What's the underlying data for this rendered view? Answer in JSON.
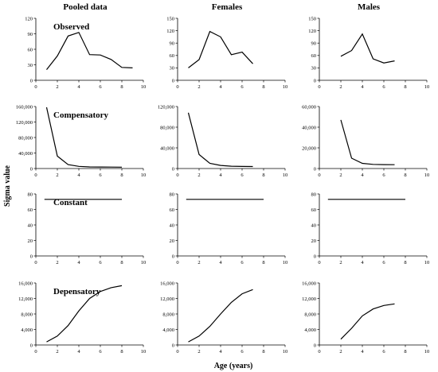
{
  "figure": {
    "column_titles": [
      "Pooled data",
      "Females",
      "Males"
    ],
    "y_axis_title": "Sigma value",
    "x_axis_title": "Age (years)"
  },
  "chart_data": [
    {
      "type": "line",
      "row": "Observed",
      "column": "Pooled data",
      "title": "Observed",
      "x": [
        1,
        2,
        3,
        4,
        5,
        6,
        7,
        8,
        9
      ],
      "values": [
        24,
        55,
        100,
        108,
        58,
        57,
        47,
        29,
        28
      ],
      "xlim": [
        0,
        10
      ],
      "ylim": [
        0,
        140
      ],
      "xticks": [
        "0",
        "2",
        "4",
        "6",
        "8",
        "10"
      ],
      "yticks": [
        "0",
        "30",
        "60",
        "90",
        "120"
      ]
    },
    {
      "type": "line",
      "row": "Observed",
      "column": "Females",
      "x": [
        1,
        2,
        3,
        4,
        5,
        6,
        7
      ],
      "values": [
        30,
        50,
        118,
        105,
        62,
        68,
        40
      ],
      "xlim": [
        0,
        10
      ],
      "ylim": [
        0,
        150
      ],
      "xticks": [
        "0",
        "2",
        "4",
        "6",
        "8",
        "10"
      ],
      "yticks": [
        "0",
        "30",
        "60",
        "90",
        "120",
        "150"
      ]
    },
    {
      "type": "line",
      "row": "Observed",
      "column": "Males",
      "x": [
        2,
        3,
        4,
        5,
        6,
        7
      ],
      "values": [
        58,
        72,
        112,
        52,
        42,
        47
      ],
      "xlim": [
        0,
        10
      ],
      "ylim": [
        0,
        150
      ],
      "xticks": [
        "0",
        "2",
        "4",
        "6",
        "8",
        "10"
      ],
      "yticks": [
        "0",
        "30",
        "60",
        "90",
        "120",
        "150"
      ]
    },
    {
      "type": "line",
      "row": "Compensatory",
      "column": "Pooled data",
      "title": "Compensatory",
      "x": [
        1,
        2,
        3,
        4,
        5,
        6,
        7,
        8
      ],
      "values": [
        158000,
        32000,
        10000,
        5500,
        4200,
        3800,
        3600,
        3500
      ],
      "xlim": [
        0,
        10
      ],
      "ylim": [
        0,
        160000
      ],
      "xticks": [
        "0",
        "2",
        "4",
        "6",
        "8",
        "10"
      ],
      "yticks": [
        "0",
        "40,000",
        "80,000",
        "120,000",
        "160,000"
      ]
    },
    {
      "type": "line",
      "row": "Compensatory",
      "column": "Females",
      "x": [
        1,
        2,
        3,
        4,
        5,
        6,
        7
      ],
      "values": [
        108000,
        27000,
        10000,
        6000,
        4500,
        4000,
        3800
      ],
      "xlim": [
        0,
        10
      ],
      "ylim": [
        0,
        120000
      ],
      "xticks": [
        "0",
        "2",
        "4",
        "6",
        "8",
        "10"
      ],
      "yticks": [
        "0",
        "40,000",
        "80,000",
        "120,000"
      ]
    },
    {
      "type": "line",
      "row": "Compensatory",
      "column": "Males",
      "x": [
        2,
        3,
        4,
        5,
        6,
        7
      ],
      "values": [
        47000,
        10000,
        5000,
        4000,
        3800,
        3700
      ],
      "xlim": [
        0,
        10
      ],
      "ylim": [
        0,
        60000
      ],
      "xticks": [
        "0",
        "2",
        "4",
        "6",
        "8",
        "10"
      ],
      "yticks": [
        "0",
        "20,000",
        "40,000",
        "60,000"
      ]
    },
    {
      "type": "line",
      "row": "Constant",
      "column": "Pooled data",
      "title": "Constant",
      "x": [
        0.8,
        8
      ],
      "values": [
        73,
        73
      ],
      "xlim": [
        0,
        10
      ],
      "ylim": [
        0,
        80
      ],
      "xticks": [
        "0",
        "2",
        "4",
        "6",
        "8",
        "10"
      ],
      "yticks": [
        "0",
        "20",
        "40",
        "60",
        "80"
      ]
    },
    {
      "type": "line",
      "row": "Constant",
      "column": "Females",
      "x": [
        0.8,
        8
      ],
      "values": [
        73,
        73
      ],
      "xlim": [
        0,
        10
      ],
      "ylim": [
        0,
        80
      ],
      "xticks": [
        "0",
        "2",
        "4",
        "6",
        "8",
        "10"
      ],
      "yticks": [
        "0",
        "20",
        "40",
        "60",
        "80"
      ]
    },
    {
      "type": "line",
      "row": "Constant",
      "column": "Males",
      "x": [
        0.8,
        8
      ],
      "values": [
        73,
        73
      ],
      "xlim": [
        0,
        10
      ],
      "ylim": [
        0,
        80
      ],
      "xticks": [
        "0",
        "2",
        "4",
        "6",
        "8",
        "10"
      ],
      "yticks": [
        "0",
        "20",
        "40",
        "60",
        "80"
      ]
    },
    {
      "type": "line",
      "row": "Depensatory",
      "column": "Pooled data",
      "title": "Depensatory",
      "x": [
        1,
        2,
        3,
        4,
        5,
        6,
        7,
        8
      ],
      "values": [
        800,
        2300,
        5000,
        8800,
        12000,
        13800,
        14800,
        15300
      ],
      "xlim": [
        0,
        10
      ],
      "ylim": [
        0,
        16000
      ],
      "xticks": [
        "0",
        "2",
        "4",
        "6",
        "8",
        "10"
      ],
      "yticks": [
        "0",
        "4,000",
        "8,000",
        "12,000",
        "16,000"
      ]
    },
    {
      "type": "line",
      "row": "Depensatory",
      "column": "Females",
      "x": [
        1,
        2,
        3,
        4,
        5,
        6,
        7
      ],
      "values": [
        800,
        2300,
        4800,
        8000,
        11000,
        13200,
        14300
      ],
      "xlim": [
        0,
        10
      ],
      "ylim": [
        0,
        16000
      ],
      "xticks": [
        "0",
        "2",
        "4",
        "6",
        "8",
        "10"
      ],
      "yticks": [
        "0",
        "4,000",
        "8,000",
        "12,000",
        "16,000"
      ]
    },
    {
      "type": "line",
      "row": "Depensatory",
      "column": "Males",
      "x": [
        2,
        3,
        4,
        5,
        6,
        7
      ],
      "values": [
        1500,
        4300,
        7500,
        9300,
        10200,
        10600
      ],
      "xlim": [
        0,
        10
      ],
      "ylim": [
        0,
        16000
      ],
      "xticks": [
        "0",
        "2",
        "4",
        "6",
        "8",
        "10"
      ],
      "yticks": [
        "0",
        "4,000",
        "8,000",
        "12,000",
        "16,000"
      ]
    }
  ]
}
